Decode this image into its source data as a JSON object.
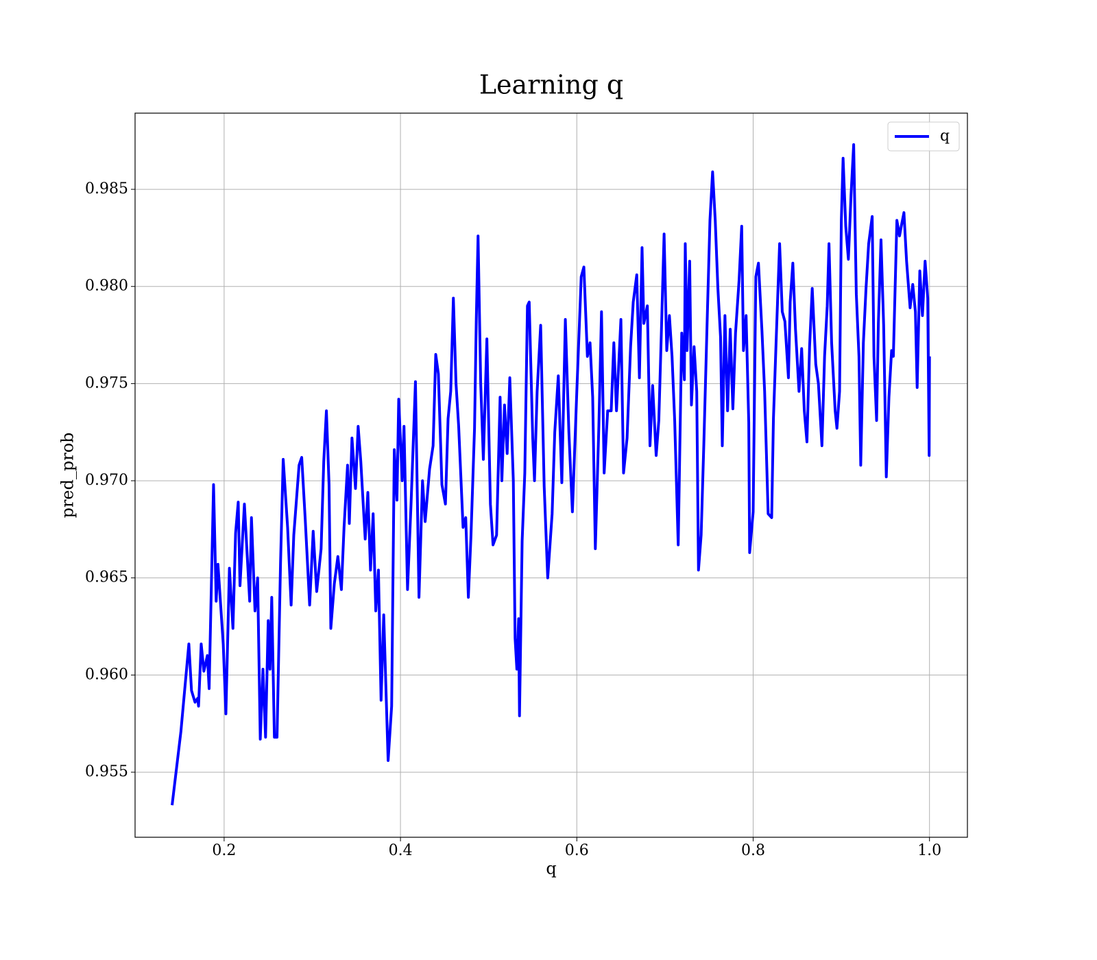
{
  "chart_data": {
    "type": "line",
    "title": "Learning q",
    "xlabel": "q",
    "ylabel": "pred_prob",
    "xlim": [
      0.099,
      1.043
    ],
    "ylim": [
      0.95165,
      0.98892
    ],
    "xticks": [
      0.2,
      0.4,
      0.6,
      0.8,
      {
        "value": 1.0,
        "label": "1.0"
      }
    ],
    "yticks": [
      0.955,
      {
        "value": 0.96,
        "label": "0.960"
      },
      0.965,
      {
        "value": 0.97,
        "label": "0.970"
      },
      0.975,
      {
        "value": 0.98,
        "label": "0.980"
      },
      0.985
    ],
    "grid": true,
    "legend": "upper right",
    "x": [
      0.141,
      0.151,
      0.16,
      0.163,
      0.167,
      0.17,
      0.171,
      0.174,
      0.177,
      0.181,
      0.183,
      0.188,
      0.191,
      0.193,
      0.199,
      0.202,
      0.206,
      0.21,
      0.213,
      0.216,
      0.218,
      0.223,
      0.229,
      0.231,
      0.235,
      0.238,
      0.241,
      0.244,
      0.247,
      0.25,
      0.252,
      0.254,
      0.257,
      0.26,
      0.264,
      0.267,
      0.272,
      0.276,
      0.279,
      0.285,
      0.288,
      0.292,
      0.297,
      0.301,
      0.305,
      0.31,
      0.313,
      0.316,
      0.319,
      0.321,
      0.325,
      0.329,
      0.333,
      0.336,
      0.34,
      0.342,
      0.345,
      0.349,
      0.352,
      0.355,
      0.358,
      0.36,
      0.363,
      0.366,
      0.369,
      0.372,
      0.375,
      0.378,
      0.381,
      0.386,
      0.39,
      0.393,
      0.396,
      0.398,
      0.402,
      0.404,
      0.408,
      0.412,
      0.417,
      0.421,
      0.425,
      0.428,
      0.433,
      0.437,
      0.44,
      0.443,
      0.447,
      0.451,
      0.454,
      0.457,
      0.46,
      0.463,
      0.466,
      0.471,
      0.474,
      0.477,
      0.48,
      0.484,
      0.486,
      0.488,
      0.491,
      0.494,
      0.498,
      0.502,
      0.505,
      0.509,
      0.513,
      0.515,
      0.518,
      0.521,
      0.524,
      0.528,
      0.53,
      0.532,
      0.534,
      0.535,
      0.538,
      0.541,
      0.544,
      0.546,
      0.55,
      0.552,
      0.555,
      0.559,
      0.563,
      0.567,
      0.572,
      0.575,
      0.579,
      0.583,
      0.587,
      0.591,
      0.595,
      0.6,
      0.605,
      0.608,
      0.612,
      0.615,
      0.618,
      0.621,
      0.625,
      0.628,
      0.631,
      0.635,
      0.639,
      0.642,
      0.645,
      0.65,
      0.653,
      0.657,
      0.661,
      0.664,
      0.668,
      0.671,
      0.674,
      0.676,
      0.68,
      0.683,
      0.686,
      0.69,
      0.693,
      0.696,
      0.699,
      0.702,
      0.705,
      0.708,
      0.711,
      0.715,
      0.719,
      0.722,
      0.723,
      0.725,
      0.728,
      0.73,
      0.733,
      0.736,
      0.738,
      0.741,
      0.744,
      0.748,
      0.751,
      0.754,
      0.757,
      0.76,
      0.763,
      0.765,
      0.768,
      0.771,
      0.774,
      0.777,
      0.78,
      0.784,
      0.787,
      0.789,
      0.792,
      0.795,
      0.796,
      0.8,
      0.803,
      0.806,
      0.81,
      0.813,
      0.817,
      0.821,
      0.823,
      0.826,
      0.83,
      0.833,
      0.836,
      0.84,
      0.842,
      0.845,
      0.848,
      0.852,
      0.855,
      0.858,
      0.861,
      0.864,
      0.867,
      0.871,
      0.874,
      0.878,
      0.881,
      0.884,
      0.886,
      0.889,
      0.893,
      0.895,
      0.898,
      0.9,
      0.902,
      0.905,
      0.908,
      0.911,
      0.914,
      0.917,
      0.92,
      0.922,
      0.925,
      0.928,
      0.931,
      0.935,
      0.937,
      0.94,
      0.942,
      0.945,
      0.948,
      0.951,
      0.954,
      0.957,
      0.959,
      0.963,
      0.966,
      0.968,
      0.971,
      0.974,
      0.978,
      0.981,
      0.984,
      0.986,
      0.989,
      0.992,
      0.995,
      0.998,
      0.9996,
      1.0
    ],
    "series": [
      {
        "name": "q",
        "color": "#0000ff",
        "values": [
          0.9533,
          0.9571,
          0.9616,
          0.9592,
          0.9586,
          0.9588,
          0.9584,
          0.9616,
          0.9602,
          0.961,
          0.9593,
          0.9698,
          0.9638,
          0.9657,
          0.9616,
          0.958,
          0.9655,
          0.9624,
          0.9673,
          0.9689,
          0.9646,
          0.9688,
          0.9638,
          0.9681,
          0.9633,
          0.965,
          0.9567,
          0.9603,
          0.9568,
          0.9628,
          0.9603,
          0.964,
          0.9568,
          0.9568,
          0.9658,
          0.9711,
          0.9676,
          0.9636,
          0.9672,
          0.9708,
          0.9712,
          0.968,
          0.9636,
          0.9674,
          0.9643,
          0.9665,
          0.971,
          0.9736,
          0.9698,
          0.9624,
          0.9647,
          0.9661,
          0.9644,
          0.9676,
          0.9708,
          0.9678,
          0.9722,
          0.9696,
          0.9728,
          0.971,
          0.9686,
          0.967,
          0.9694,
          0.9654,
          0.9683,
          0.9633,
          0.9654,
          0.9587,
          0.9631,
          0.9556,
          0.9584,
          0.9716,
          0.969,
          0.9742,
          0.97,
          0.9728,
          0.9644,
          0.9688,
          0.9751,
          0.964,
          0.97,
          0.9679,
          0.9706,
          0.9718,
          0.9765,
          0.9755,
          0.9698,
          0.9688,
          0.9732,
          0.9746,
          0.9794,
          0.975,
          0.9728,
          0.9676,
          0.9681,
          0.964,
          0.9672,
          0.9727,
          0.9783,
          0.9826,
          0.975,
          0.9711,
          0.9773,
          0.9688,
          0.9667,
          0.9672,
          0.9743,
          0.97,
          0.9739,
          0.9714,
          0.9753,
          0.97,
          0.9619,
          0.9603,
          0.9629,
          0.9579,
          0.9669,
          0.9704,
          0.979,
          0.9792,
          0.9722,
          0.97,
          0.9746,
          0.978,
          0.9697,
          0.965,
          0.9683,
          0.9725,
          0.9754,
          0.9699,
          0.9783,
          0.9725,
          0.9684,
          0.9746,
          0.9805,
          0.981,
          0.9764,
          0.9771,
          0.9743,
          0.9665,
          0.9728,
          0.9787,
          0.9704,
          0.9736,
          0.9736,
          0.9771,
          0.9736,
          0.9783,
          0.9704,
          0.9722,
          0.9769,
          0.9792,
          0.9806,
          0.9753,
          0.982,
          0.9781,
          0.979,
          0.9718,
          0.9749,
          0.9713,
          0.9731,
          0.9778,
          0.9827,
          0.9767,
          0.9785,
          0.9764,
          0.9731,
          0.9667,
          0.9776,
          0.9752,
          0.9822,
          0.9767,
          0.9813,
          0.9739,
          0.9769,
          0.9746,
          0.9654,
          0.9672,
          0.9718,
          0.9785,
          0.9834,
          0.9859,
          0.9834,
          0.9799,
          0.9774,
          0.9718,
          0.9785,
          0.9736,
          0.9778,
          0.9737,
          0.9776,
          0.9803,
          0.9831,
          0.9767,
          0.9785,
          0.973,
          0.9663,
          0.9684,
          0.9805,
          0.9812,
          0.9777,
          0.9746,
          0.9683,
          0.9681,
          0.9732,
          0.9771,
          0.9822,
          0.9787,
          0.9782,
          0.9753,
          0.9792,
          0.9812,
          0.9778,
          0.9746,
          0.9768,
          0.9736,
          0.972,
          0.9769,
          0.9799,
          0.976,
          0.975,
          0.9718,
          0.9764,
          0.979,
          0.9822,
          0.9771,
          0.9736,
          0.9727,
          0.9746,
          0.9834,
          0.9866,
          0.9831,
          0.9814,
          0.9847,
          0.9873,
          0.9796,
          0.9764,
          0.9708,
          0.9771,
          0.9799,
          0.9822,
          0.9836,
          0.9764,
          0.9731,
          0.9781,
          0.9824,
          0.978,
          0.9702,
          0.9743,
          0.9767,
          0.9764,
          0.9834,
          0.9826,
          0.9831,
          0.9838,
          0.9813,
          0.9789,
          0.9801,
          0.9787,
          0.9748,
          0.9808,
          0.9785,
          0.9813,
          0.9794,
          0.9713,
          0.9764
        ]
      }
    ]
  }
}
